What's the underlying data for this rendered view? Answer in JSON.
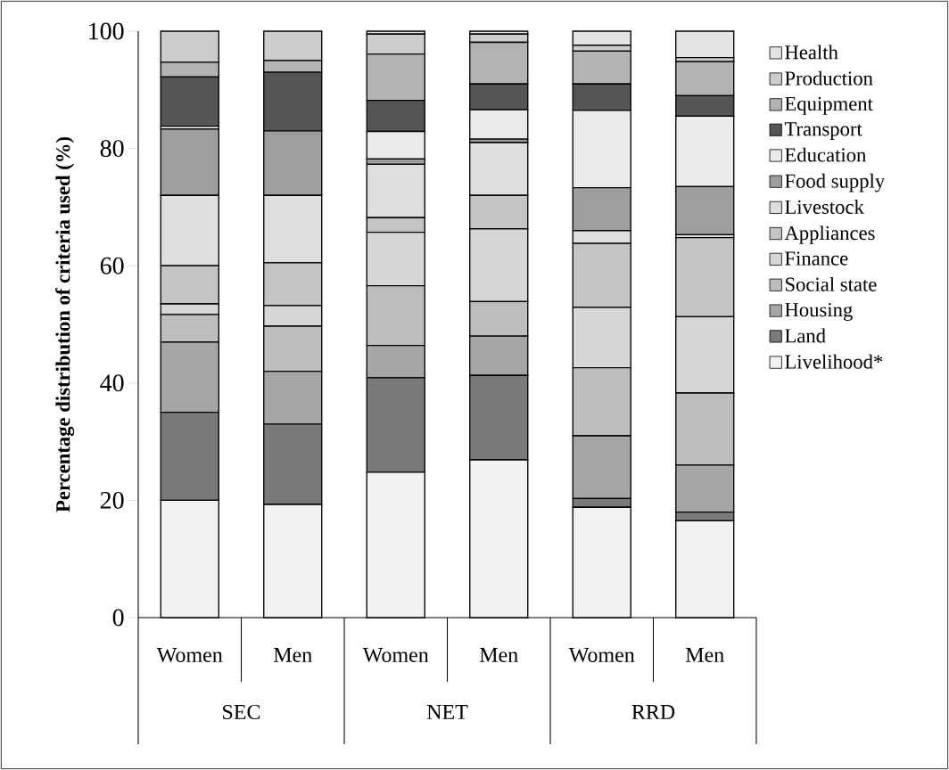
{
  "chart_data": {
    "type": "bar",
    "stacked": true,
    "ylabel": "Percentage distribution of criteria used (%)",
    "categories": [
      "Women",
      "Men",
      "Women",
      "Men",
      "Women",
      "Men"
    ],
    "annotations": [
      "SEC",
      "NET",
      "RRD"
    ],
    "ylim": [
      0,
      100
    ],
    "yticks": [
      0,
      20,
      40,
      60,
      80,
      100
    ],
    "legend": "right",
    "series": [
      {
        "name": "Livelihood*",
        "color": "#f2f2f2",
        "values": [
          20,
          19.3,
          24.8,
          26.9,
          18.8,
          16.5
        ]
      },
      {
        "name": "Land",
        "color": "#7a7a7a",
        "values": [
          15,
          13.7,
          16.1,
          14.4,
          1.5,
          1.5
        ]
      },
      {
        "name": "Housing",
        "color": "#a6a6a6",
        "values": [
          12,
          9,
          5.5,
          6.7,
          10.7,
          8
        ]
      },
      {
        "name": "Social state",
        "color": "#bdbdbd",
        "values": [
          4.7,
          7.7,
          10.2,
          5.9,
          11.6,
          12.3
        ]
      },
      {
        "name": "Finance",
        "color": "#d6d6d6",
        "values": [
          1.8,
          3.5,
          9.1,
          12.4,
          10.3,
          13
        ]
      },
      {
        "name": "Appliances",
        "color": "#c4c4c4",
        "values": [
          6.5,
          7.3,
          2.5,
          5.7,
          10.9,
          13.5
        ]
      },
      {
        "name": "Livestock",
        "color": "#dedede",
        "values": [
          12,
          11.5,
          9.1,
          9,
          2.2,
          0.5
        ]
      },
      {
        "name": "Food supply",
        "color": "#9e9e9e",
        "values": [
          11.3,
          11,
          0.9,
          0.6,
          7.3,
          8.2
        ]
      },
      {
        "name": "Education",
        "color": "#eaeaea",
        "values": [
          0.5,
          0,
          4.7,
          5,
          13.2,
          12
        ]
      },
      {
        "name": "Transport",
        "color": "#555555",
        "values": [
          8.4,
          10,
          5.3,
          4.4,
          4.5,
          3.5
        ]
      },
      {
        "name": "Equipment",
        "color": "#b3b3b3",
        "values": [
          2.5,
          2,
          7.9,
          7.1,
          5.6,
          5.8
        ]
      },
      {
        "name": "Production",
        "color": "#cccccc",
        "values": [
          5.3,
          5,
          3.4,
          1.4,
          1,
          0.7
        ]
      },
      {
        "name": "Health",
        "color": "#e4e4e4",
        "values": [
          0,
          0,
          0.5,
          0.5,
          2.4,
          4.5
        ]
      }
    ]
  }
}
